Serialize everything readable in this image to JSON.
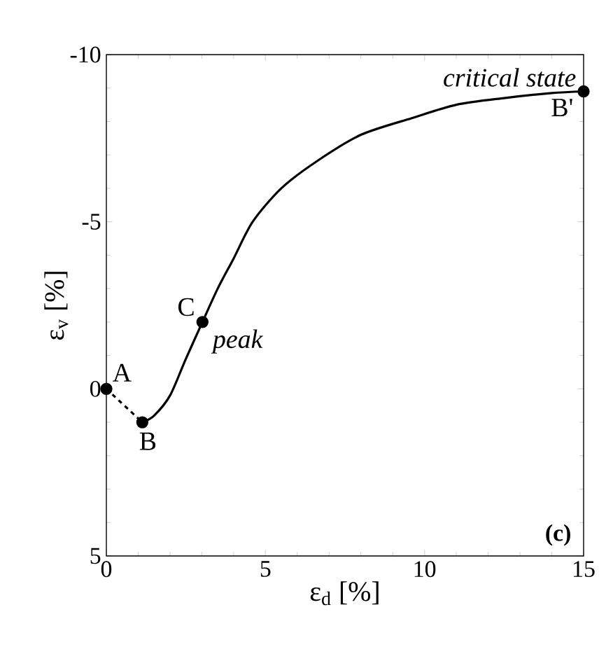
{
  "chart_data": {
    "type": "line",
    "xlabel": "ε$_{d}$ [%]",
    "ylabel": "ε$_{v}$ [%]",
    "xlim": [
      0,
      15
    ],
    "ylim": [
      5,
      -10
    ],
    "xticks": [
      0,
      5,
      10,
      15
    ],
    "yticks": [
      -10,
      -5,
      0,
      5
    ],
    "grid": false,
    "series": [
      {
        "line_style": "dashed",
        "marker": "none",
        "color": "#000000",
        "x": [
          0,
          1.13
        ],
        "values": [
          0,
          1
        ]
      },
      {
        "line_style": "solid",
        "marker": "none",
        "color": "#000000",
        "x": [
          1.13,
          1.5,
          2,
          2.5,
          3.02,
          3.5,
          4,
          4.6,
          5.5,
          6.6,
          8,
          9.6,
          11,
          12.5,
          14,
          15
        ],
        "values": [
          1,
          0.8,
          0.2,
          -0.9,
          -2,
          -3,
          -3.9,
          -5,
          -6,
          -6.8,
          -7.6,
          -8.1,
          -8.5,
          -8.7,
          -8.85,
          -8.9
        ]
      },
      {
        "type": "scatter",
        "marker": "circle",
        "color": "#000000",
        "x": [
          0,
          1.13,
          3.02,
          15
        ],
        "values": [
          0,
          1,
          -2,
          -8.9
        ]
      }
    ],
    "annotations": [
      {
        "text": "A",
        "x": 0,
        "y": 0
      },
      {
        "text": "B",
        "x": 1.13,
        "y": 1
      },
      {
        "text": "C",
        "x": 3.02,
        "y": -2
      },
      {
        "text": "*peak*",
        "x": 3.02,
        "y": -2
      },
      {
        "text": "B'",
        "x": 15,
        "y": -8.9
      },
      {
        "text": "*critical state*",
        "x": 15,
        "y": -8.9
      },
      "**(c)**"
    ]
  }
}
